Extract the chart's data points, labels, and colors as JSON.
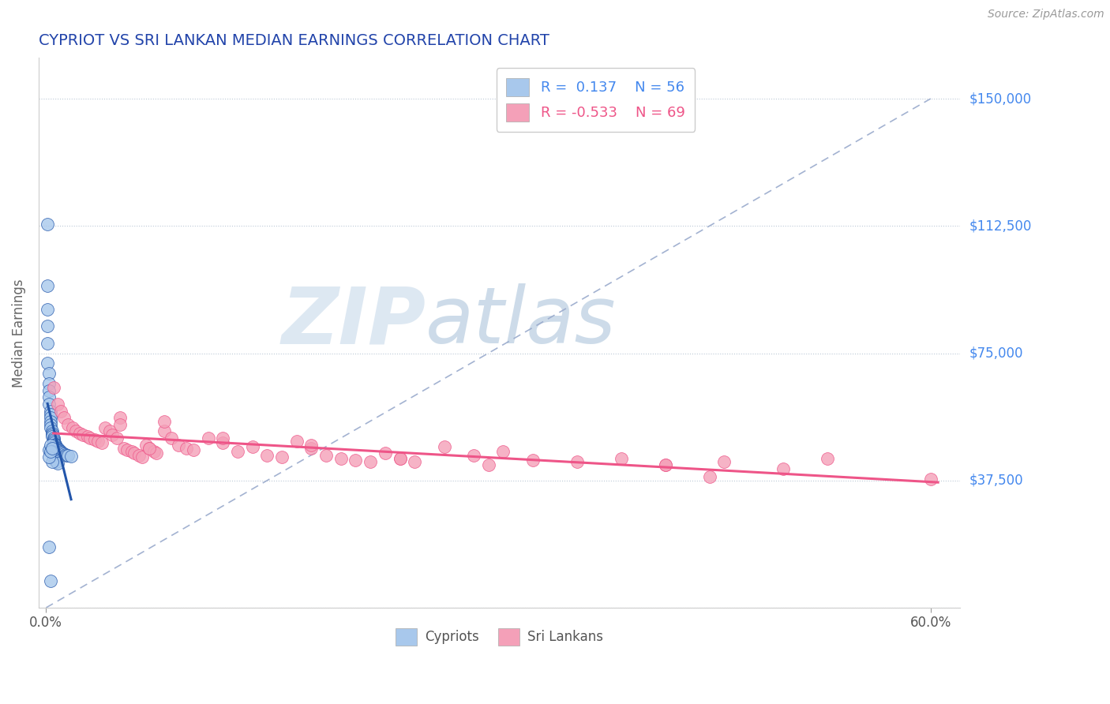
{
  "title": "CYPRIOT VS SRI LANKAN MEDIAN EARNINGS CORRELATION CHART",
  "source": "Source: ZipAtlas.com",
  "ylabel": "Median Earnings",
  "xlim": [
    -0.005,
    0.62
  ],
  "ylim": [
    0,
    162000
  ],
  "yticks": [
    0,
    37500,
    75000,
    112500,
    150000
  ],
  "ytick_labels": [
    "",
    "$37,500",
    "$75,000",
    "$112,500",
    "$150,000"
  ],
  "xtick_positions": [
    0.0,
    0.6
  ],
  "xtick_labels": [
    "0.0%",
    "60.0%"
  ],
  "cypriot_R": 0.137,
  "cypriot_N": 56,
  "srilankan_R": -0.533,
  "srilankan_N": 69,
  "dot_color_cypriot": "#A8C8EC",
  "dot_color_srilankan": "#F4A0B8",
  "line_color_cypriot": "#2255AA",
  "line_color_srilankan": "#EE5588",
  "ref_line_color": "#99AACC",
  "title_color": "#2244AA",
  "tick_color_right": "#4488EE",
  "watermark_zip_color": "#CCDDEE",
  "watermark_atlas_color": "#AABBCC",
  "legend_label_cypriot": "Cypriots",
  "legend_label_srilankan": "Sri Lankans",
  "cypriot_x": [
    0.001,
    0.001,
    0.001,
    0.001,
    0.001,
    0.001,
    0.002,
    0.002,
    0.002,
    0.002,
    0.002,
    0.003,
    0.003,
    0.003,
    0.003,
    0.003,
    0.003,
    0.004,
    0.004,
    0.004,
    0.004,
    0.005,
    0.005,
    0.005,
    0.005,
    0.006,
    0.006,
    0.006,
    0.007,
    0.007,
    0.008,
    0.008,
    0.008,
    0.009,
    0.009,
    0.01,
    0.01,
    0.011,
    0.012,
    0.013,
    0.014,
    0.015,
    0.017,
    0.002,
    0.003,
    0.004,
    0.005,
    0.006,
    0.007,
    0.008,
    0.002,
    0.003,
    0.004,
    0.002,
    0.003,
    0.004
  ],
  "cypriot_y": [
    113000,
    95000,
    88000,
    83000,
    78000,
    72000,
    69000,
    66000,
    64000,
    62000,
    60000,
    58000,
    57000,
    56000,
    55000,
    54000,
    53000,
    52000,
    51500,
    51000,
    50500,
    50000,
    49500,
    49000,
    48500,
    48200,
    48000,
    47800,
    47500,
    47200,
    47000,
    46800,
    46600,
    46400,
    46200,
    46000,
    45800,
    45600,
    45400,
    45200,
    45000,
    44800,
    44600,
    46500,
    48000,
    46000,
    44000,
    43500,
    43000,
    42500,
    18000,
    8000,
    43000,
    44500,
    46000,
    47000
  ],
  "srilankan_x": [
    0.005,
    0.008,
    0.01,
    0.012,
    0.015,
    0.018,
    0.02,
    0.023,
    0.025,
    0.028,
    0.03,
    0.033,
    0.035,
    0.038,
    0.04,
    0.043,
    0.045,
    0.048,
    0.05,
    0.053,
    0.055,
    0.058,
    0.06,
    0.063,
    0.065,
    0.068,
    0.07,
    0.073,
    0.075,
    0.08,
    0.085,
    0.09,
    0.095,
    0.1,
    0.11,
    0.12,
    0.13,
    0.14,
    0.15,
    0.16,
    0.17,
    0.18,
    0.19,
    0.2,
    0.21,
    0.22,
    0.23,
    0.24,
    0.25,
    0.27,
    0.29,
    0.31,
    0.33,
    0.36,
    0.39,
    0.42,
    0.46,
    0.5,
    0.53,
    0.6,
    0.08,
    0.12,
    0.18,
    0.24,
    0.42,
    0.05,
    0.07,
    0.3,
    0.45
  ],
  "srilankan_y": [
    65000,
    60000,
    58000,
    56000,
    54000,
    53000,
    52000,
    51500,
    51000,
    50500,
    50000,
    49500,
    49000,
    48500,
    53000,
    52000,
    51000,
    50000,
    56000,
    47000,
    46500,
    46000,
    45500,
    45000,
    44500,
    48000,
    47000,
    46000,
    45500,
    52000,
    50000,
    48000,
    47000,
    46500,
    50000,
    48500,
    46000,
    47500,
    45000,
    44500,
    49000,
    47000,
    45000,
    44000,
    43500,
    43000,
    45500,
    44000,
    43000,
    47500,
    45000,
    46000,
    43500,
    43000,
    44000,
    42000,
    43000,
    41000,
    44000,
    38000,
    55000,
    50000,
    48000,
    44000,
    42000,
    54000,
    47000,
    42000,
    38500
  ]
}
